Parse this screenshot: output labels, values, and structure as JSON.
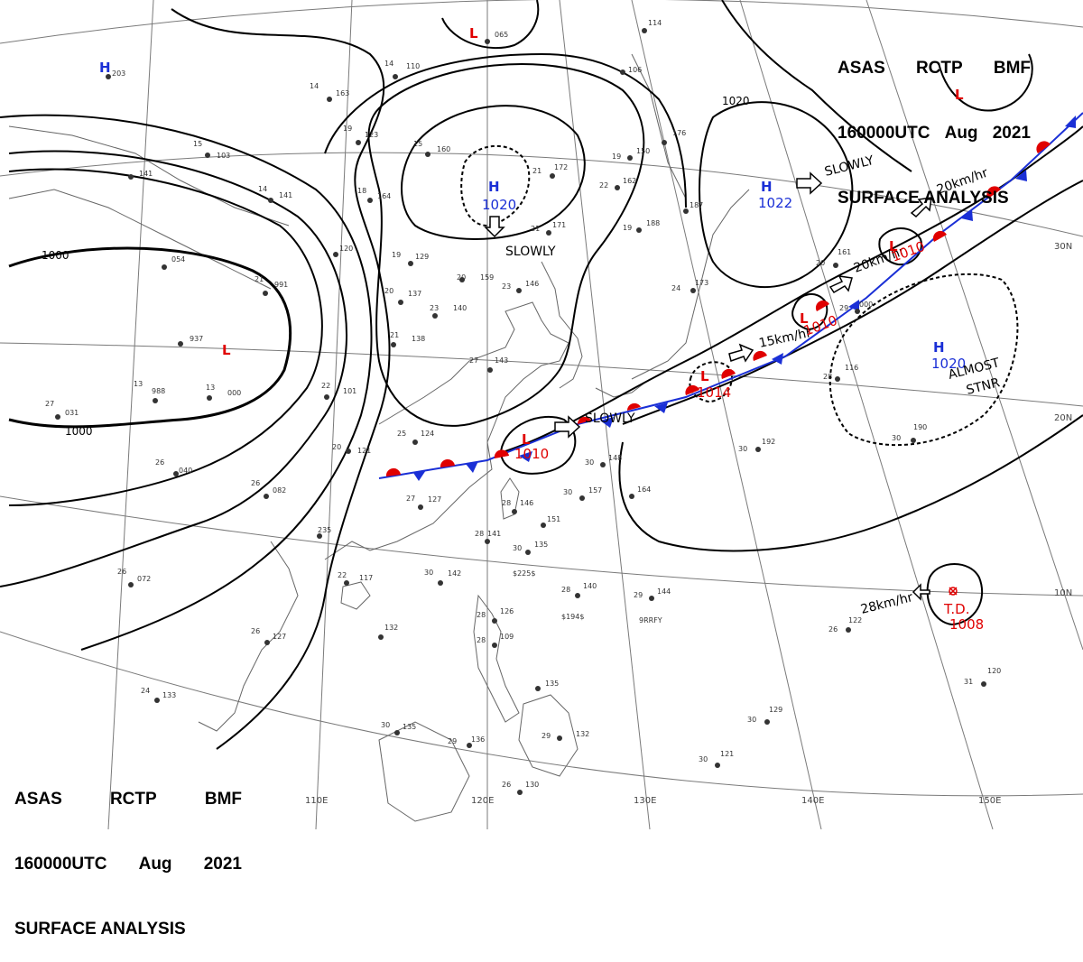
{
  "header_top_right": {
    "line1": [
      "ASAS",
      "RCTP",
      "BMF"
    ],
    "line2": [
      "160000UTC",
      "Aug",
      "2021"
    ],
    "line3": "SURFACE ANALYSIS"
  },
  "header_bottom_left": {
    "line1": [
      "ASAS",
      "RCTP",
      "BMF"
    ],
    "line2": [
      "160000UTC",
      "Aug",
      "2021"
    ],
    "line3": "SURFACE ANALYSIS"
  },
  "latitude_labels": [
    "30N",
    "20N",
    "10N"
  ],
  "longitude_labels": [
    "110E",
    "120E",
    "130E",
    "140E",
    "150E"
  ],
  "isobar_labels": [
    "1000",
    "1000",
    "1020"
  ],
  "pressure_systems": [
    {
      "id": "h-nw",
      "type": "H",
      "value": ""
    },
    {
      "id": "h-center",
      "type": "H",
      "value": "1020",
      "movement": "SLOWLY"
    },
    {
      "id": "h-east",
      "type": "H",
      "value": "1022",
      "movement": "SLOWLY"
    },
    {
      "id": "h-pacific",
      "type": "H",
      "value": "1020",
      "movement": "ALMOST STNR"
    },
    {
      "id": "l-north",
      "type": "L",
      "value": ""
    },
    {
      "id": "l-tr",
      "type": "L",
      "value": ""
    },
    {
      "id": "l-china",
      "type": "L",
      "value": ""
    },
    {
      "id": "l-front1",
      "type": "L",
      "value": "1010",
      "movement": "SLOWLY"
    },
    {
      "id": "l-front2",
      "type": "L",
      "value": "1014",
      "movement": "15km/hr"
    },
    {
      "id": "l-front3",
      "type": "L",
      "value": "1010",
      "movement": "20km/hr"
    },
    {
      "id": "l-front4",
      "type": "L",
      "value": "1010",
      "movement": "20km/hr"
    },
    {
      "id": "td",
      "type": "T.D.",
      "value": "1008",
      "movement": "28km/hr"
    }
  ],
  "colors": {
    "high": "#1a2fd6",
    "low": "#e00000",
    "front_cold": "#1a2fd6",
    "front_warm": "#e00000",
    "coast": "#666666",
    "grid": "#777777",
    "isobar": "#000000"
  },
  "stations": [
    {
      "t": "14",
      "p": "110"
    },
    {
      "t": "14",
      "p": "163"
    },
    {
      "t": "19",
      "p": "123"
    },
    {
      "t": "15",
      "p": "160"
    },
    {
      "t": "15",
      "p": "103"
    },
    {
      "t": "",
      "p": "141"
    },
    {
      "t": "14",
      "p": "141"
    },
    {
      "t": "18",
      "p": "164"
    },
    {
      "t": "21",
      "p": "172"
    },
    {
      "t": "22",
      "p": "162"
    },
    {
      "t": "19",
      "p": "150"
    },
    {
      "t": "19",
      "p": "188"
    },
    {
      "t": "21",
      "p": "171"
    },
    {
      "t": "",
      "p": "187"
    },
    {
      "t": "",
      "p": "176"
    },
    {
      "t": "",
      "p": "106"
    },
    {
      "t": "",
      "p": "114"
    },
    {
      "t": "",
      "p": "065"
    },
    {
      "t": "",
      "p": "203"
    },
    {
      "t": "",
      "p": "120"
    },
    {
      "t": "19",
      "p": "129"
    },
    {
      "t": "20",
      "p": "159"
    },
    {
      "t": "23",
      "p": "146"
    },
    {
      "t": "21",
      "p": "991"
    },
    {
      "t": "",
      "p": "054"
    },
    {
      "t": "20",
      "p": "137"
    },
    {
      "t": "23",
      "p": "140"
    },
    {
      "t": "21",
      "p": "138"
    },
    {
      "t": "",
      "p": "937"
    },
    {
      "t": "27",
      "p": "143"
    },
    {
      "t": "13",
      "p": "000"
    },
    {
      "t": "13",
      "p": "988"
    },
    {
      "t": "22",
      "p": "101"
    },
    {
      "t": "27",
      "p": "031"
    },
    {
      "t": "25",
      "p": "124"
    },
    {
      "t": "20",
      "p": "121"
    },
    {
      "t": "26",
      "p": "040"
    },
    {
      "t": "26",
      "p": "082"
    },
    {
      "t": "27",
      "p": "127"
    },
    {
      "t": "28",
      "p": "146"
    },
    {
      "t": "30",
      "p": "157"
    },
    {
      "t": "30",
      "p": "148"
    },
    {
      "t": "",
      "p": "164"
    },
    {
      "t": "30",
      "p": "192"
    },
    {
      "t": "30",
      "p": "190"
    },
    {
      "t": "20",
      "p": "161"
    },
    {
      "t": "29",
      "p": "000"
    },
    {
      "t": "28",
      "p": "116"
    },
    {
      "t": "24",
      "p": "173"
    },
    {
      "t": "",
      "p": "151"
    },
    {
      "t": "28",
      "p": "141"
    },
    {
      "t": "30",
      "p": "135"
    },
    {
      "t": "30",
      "p": "142"
    },
    {
      "t": "28",
      "p": "140"
    },
    {
      "t": "29",
      "p": "144"
    },
    {
      "t": "26",
      "p": "122"
    },
    {
      "t": "31",
      "p": "120"
    },
    {
      "t": "26",
      "p": "072"
    },
    {
      "t": "22",
      "p": "117"
    },
    {
      "t": "",
      "p": "235"
    },
    {
      "t": "26",
      "p": "127"
    },
    {
      "t": "",
      "p": "132"
    },
    {
      "t": "28",
      "p": "126"
    },
    {
      "t": "28",
      "p": "109"
    },
    {
      "t": "24",
      "p": "133"
    },
    {
      "t": "30",
      "p": "135"
    },
    {
      "t": "29",
      "p": "136"
    },
    {
      "t": "29",
      "p": "132"
    },
    {
      "t": "",
      "p": "135"
    },
    {
      "t": "30",
      "p": "129"
    },
    {
      "t": "30",
      "p": "121"
    },
    {
      "t": "26",
      "p": "130"
    }
  ],
  "station_codes": [
    "$225$",
    "$194$",
    "9RRFY"
  ]
}
